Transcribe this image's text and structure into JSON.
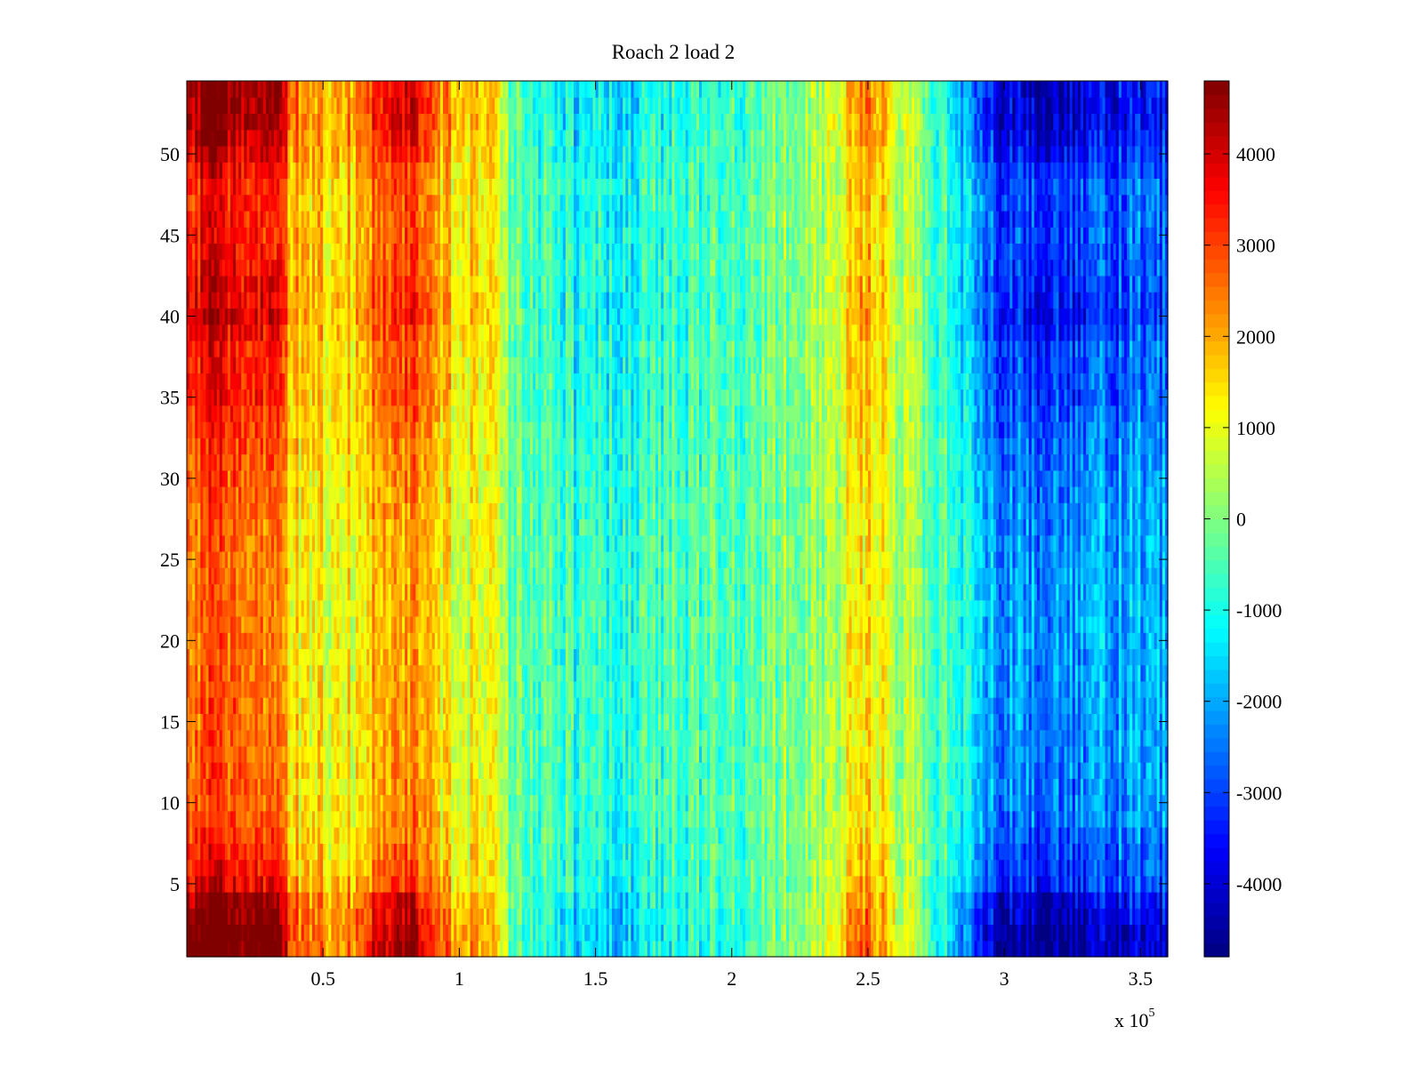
{
  "chart_data": {
    "type": "heatmap",
    "title": "Roach 2 load 2",
    "xlabel": "",
    "ylabel": "",
    "colormap": "jet",
    "x_range": [
      0,
      360000
    ],
    "x_multiplier_label": "x 10",
    "x_multiplier_exponent": "5",
    "x_ticks": [
      0.5,
      1,
      1.5,
      2,
      2.5,
      3,
      3.5
    ],
    "x_tick_labels": [
      "0.5",
      "1",
      "1.5",
      "2",
      "2.5",
      "3",
      "3.5"
    ],
    "y_range": [
      0.5,
      54.5
    ],
    "y_ticks": [
      5,
      10,
      15,
      20,
      25,
      30,
      35,
      40,
      45,
      50
    ],
    "y_tick_labels": [
      "5",
      "10",
      "15",
      "20",
      "25",
      "30",
      "35",
      "40",
      "45",
      "50"
    ],
    "color_range": [
      -4800,
      4800
    ],
    "colorbar_ticks": [
      4000,
      3000,
      2000,
      1000,
      0,
      -1000,
      -2000,
      -3000,
      -4000
    ],
    "colorbar_tick_labels": [
      "4000",
      "3000",
      "2000",
      "1000",
      "0",
      "-1000",
      "-2000",
      "-3000",
      "-4000"
    ],
    "column_profile": {
      "x": [
        0,
        10000,
        20000,
        30000,
        40000,
        55000,
        70000,
        80000,
        90000,
        100000,
        110000,
        120000,
        140000,
        160000,
        180000,
        200000,
        220000,
        240000,
        250000,
        260000,
        275000,
        285000,
        300000,
        320000,
        340000,
        360000
      ],
      "value": [
        2900,
        3300,
        2700,
        3300,
        1700,
        1200,
        2200,
        2900,
        1600,
        1300,
        1100,
        -200,
        -900,
        -1000,
        -600,
        -400,
        0,
        800,
        1700,
        700,
        -300,
        -1500,
        -2600,
        -2900,
        -2400,
        -2300
      ]
    },
    "row_profile": {
      "y": [
        1,
        2,
        4,
        5,
        8,
        10,
        15,
        20,
        25,
        30,
        33,
        35,
        38,
        40,
        42,
        45,
        48,
        50,
        52,
        54
      ],
      "value": [
        1.7,
        1.7,
        1.5,
        1.2,
        1.0,
        0.9,
        0.85,
        0.8,
        0.8,
        0.9,
        1.0,
        1.1,
        1.1,
        1.3,
        1.2,
        1.1,
        1.1,
        1.3,
        1.5,
        1.5
      ]
    }
  }
}
